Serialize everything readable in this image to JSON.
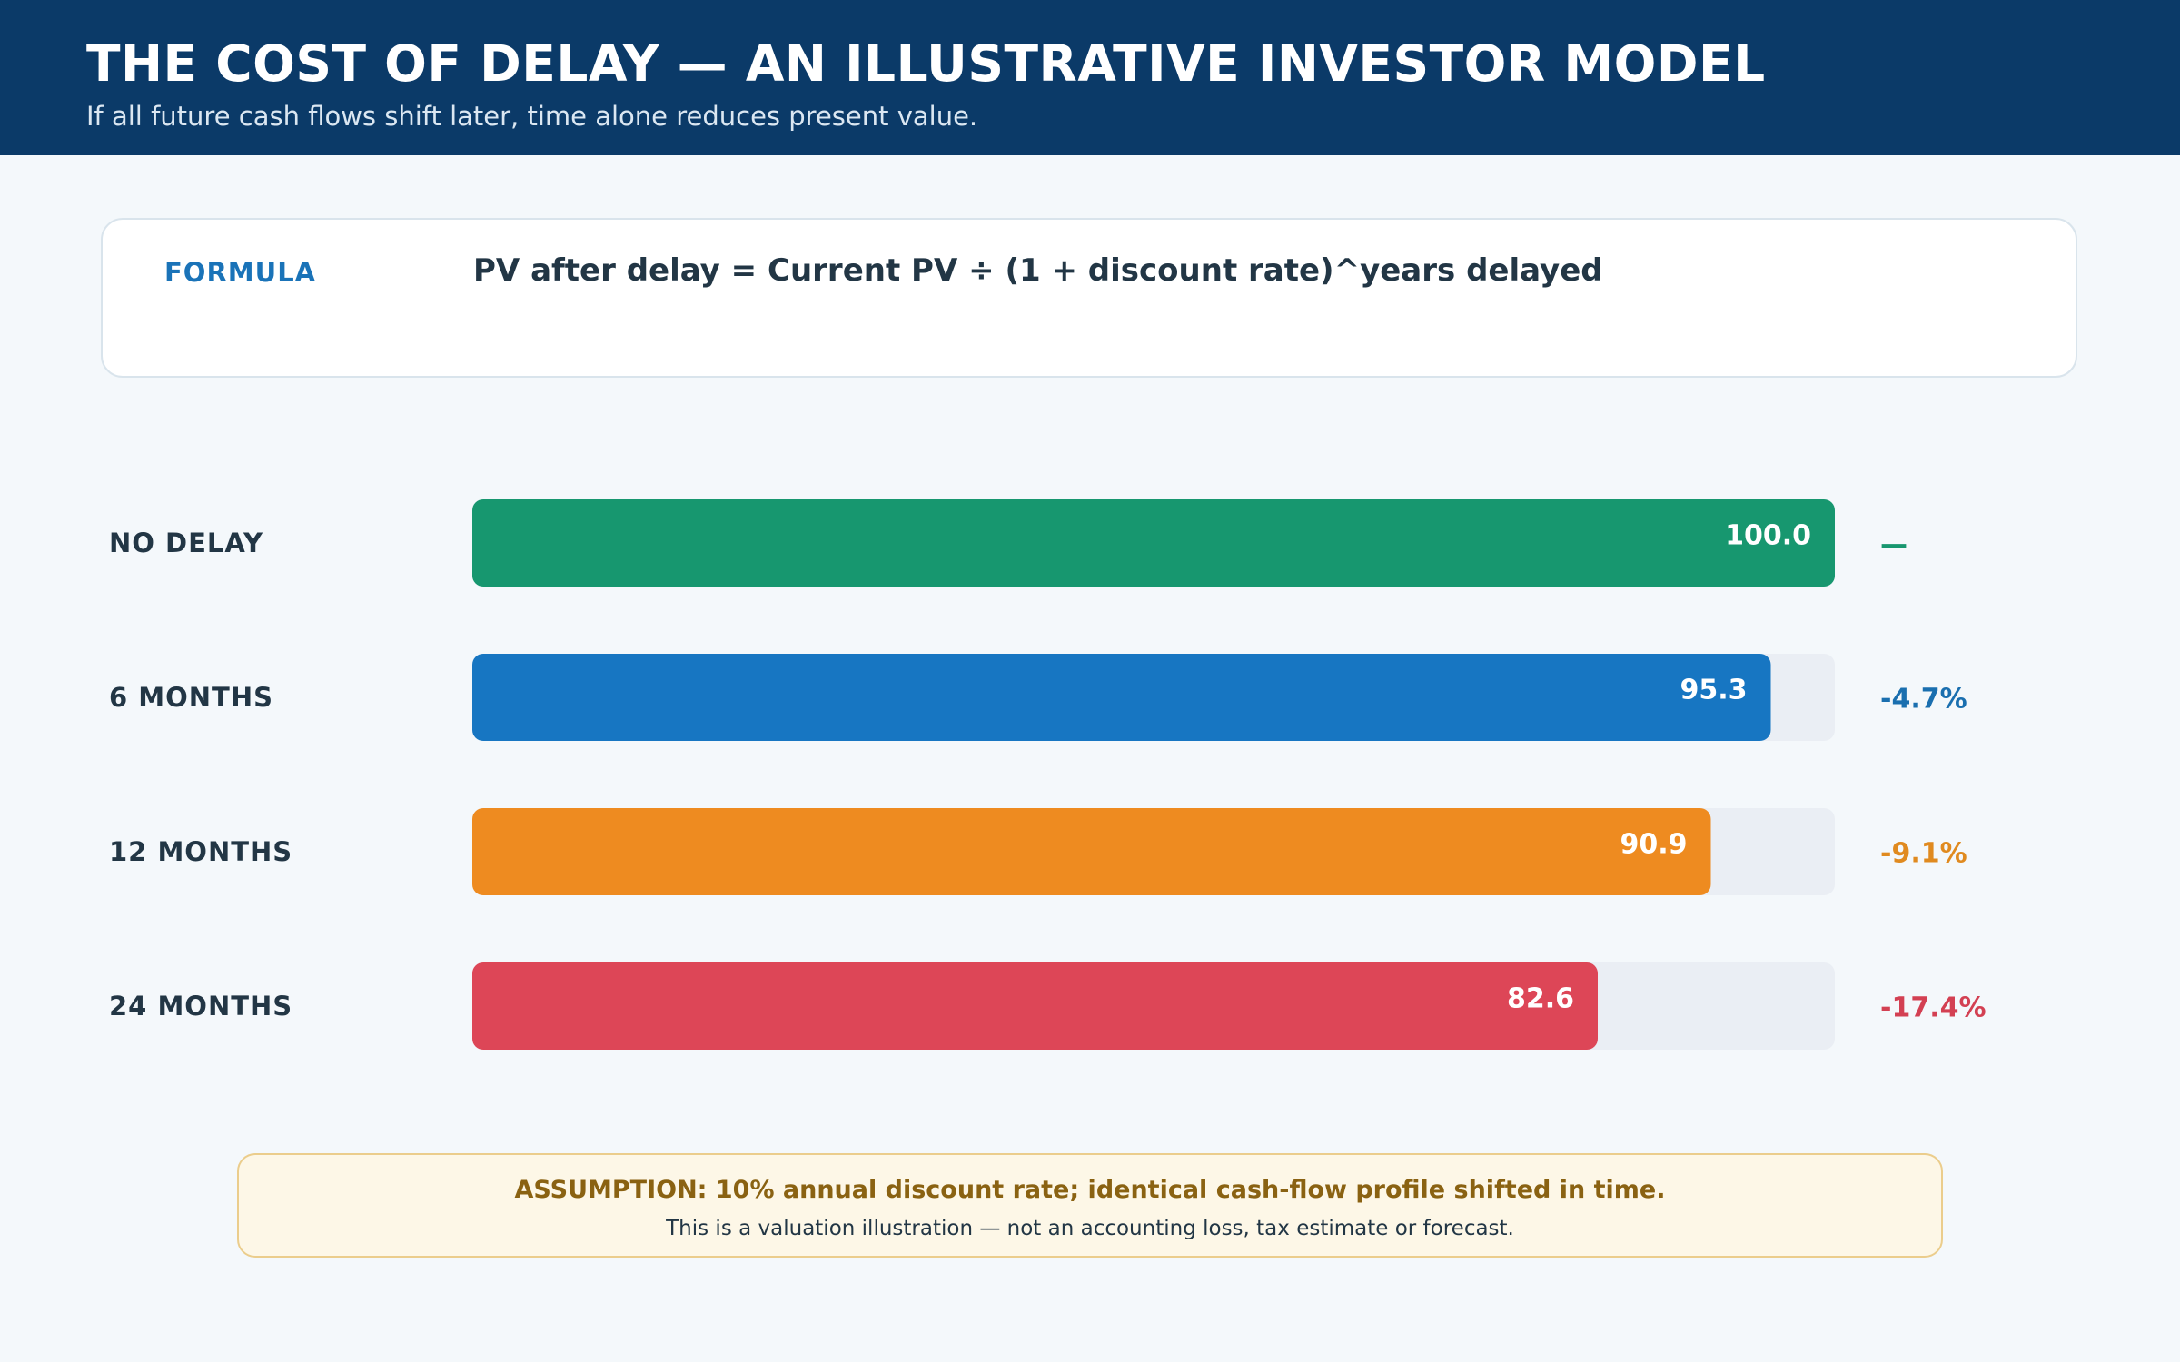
{
  "header": {
    "title": "THE COST OF DELAY — AN ILLUSTRATIVE INVESTOR MODEL",
    "subtitle": "If all future cash flows shift later, time alone reduces present value."
  },
  "formula": {
    "label": "FORMULA",
    "text": "PV after delay = Current PV ÷ (1 + discount rate)^years delayed"
  },
  "colors": {
    "header_bg": "#0b3a68",
    "track": "#eaeef4"
  },
  "chart_data": {
    "type": "bar",
    "orientation": "horizontal",
    "categories": [
      "NO DELAY",
      "6 MONTHS",
      "12 MONTHS",
      "24 MONTHS"
    ],
    "values": [
      100.0,
      95.3,
      90.9,
      82.6
    ],
    "value_labels": [
      "100.0",
      "95.3",
      "90.9",
      "82.6"
    ],
    "change_labels": [
      "—",
      "-4.7%",
      "-9.1%",
      "-17.4%"
    ],
    "colors": [
      "#17976f",
      "#1776c2",
      "#ee8b20",
      "#dd4657"
    ],
    "change_colors": [
      "#17976f",
      "#1a6faf",
      "#e08a1f",
      "#d34052"
    ],
    "xlim": [
      0,
      100
    ],
    "grid": false,
    "legend": "none"
  },
  "note": {
    "main": "ASSUMPTION: 10% annual discount rate; identical cash-flow profile shifted in time.",
    "sub": "This is a valuation illustration — not an accounting loss, tax estimate or forecast."
  }
}
